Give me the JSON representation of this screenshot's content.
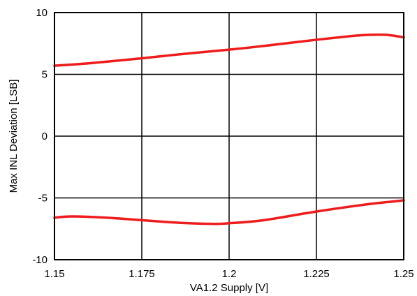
{
  "chart_data": {
    "type": "line",
    "title": "",
    "xlabel": "VA1.2 Supply [V]",
    "ylabel": "Max INL Deviation [LSB]",
    "xlim": [
      1.15,
      1.25
    ],
    "ylim": [
      -10,
      10
    ],
    "x_ticks": [
      1.15,
      1.175,
      1.2,
      1.225,
      1.25
    ],
    "x_tick_labels": [
      "1.15",
      "1.175",
      "1.2",
      "1.225",
      "1.25"
    ],
    "y_ticks": [
      10,
      5,
      0,
      -5,
      -10
    ],
    "y_tick_labels": [
      "10",
      "5",
      "0",
      "-5",
      "-10"
    ],
    "grid": true,
    "series_color": "#ee1c1c",
    "series": [
      {
        "x": [
          1.15,
          1.16,
          1.175,
          1.185,
          1.2,
          1.21,
          1.225,
          1.235,
          1.24,
          1.245,
          1.25
        ],
        "values": [
          5.7,
          5.9,
          6.3,
          6.6,
          7.0,
          7.3,
          7.8,
          8.1,
          8.2,
          8.2,
          8.0
        ]
      },
      {
        "x": [
          1.15,
          1.155,
          1.165,
          1.175,
          1.185,
          1.195,
          1.2,
          1.21,
          1.225,
          1.24,
          1.25
        ],
        "values": [
          -6.6,
          -6.5,
          -6.6,
          -6.8,
          -7.0,
          -7.1,
          -7.05,
          -6.8,
          -6.1,
          -5.5,
          -5.2
        ]
      }
    ]
  }
}
